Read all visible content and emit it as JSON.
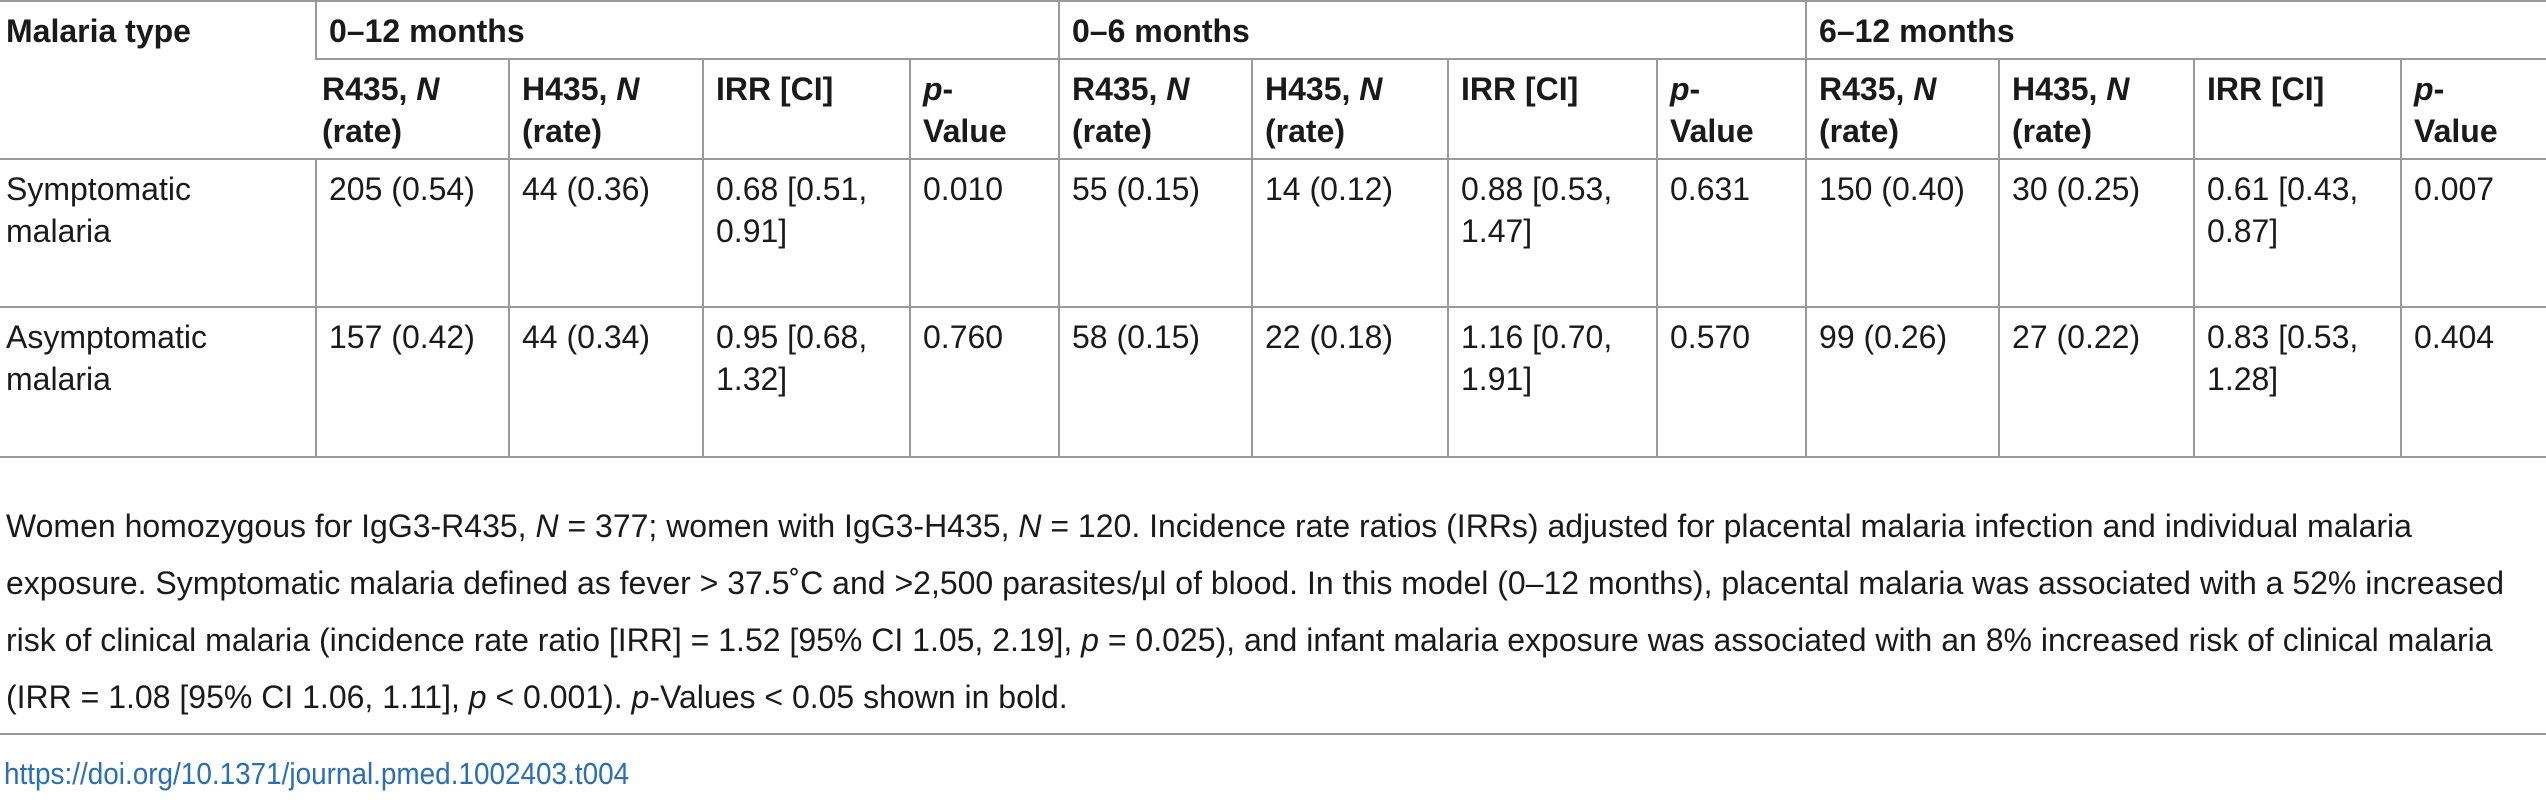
{
  "table": {
    "corner_header": "Malaria type",
    "groups": [
      "0–12 months",
      "0–6 months",
      "6–12 months"
    ],
    "subheaders": {
      "r435": [
        "R435, ",
        "N",
        "(rate)"
      ],
      "h435": [
        "H435, ",
        "N",
        "(rate)"
      ],
      "irr": "IRR [CI]",
      "pval": [
        "p",
        "-",
        "Value"
      ]
    },
    "rows": [
      {
        "label": "Symptomatic malaria",
        "cells": [
          "205 (0.54)",
          "44 (0.36)",
          "0.68 [0.51, 0.91]",
          "0.010",
          "55 (0.15)",
          "14 (0.12)",
          "0.88 [0.53, 1.47]",
          "0.631",
          "150 (0.40)",
          "30 (0.25)",
          "0.61 [0.43, 0.87]",
          "0.007"
        ],
        "bold": [
          false,
          false,
          false,
          true,
          false,
          false,
          false,
          false,
          false,
          false,
          false,
          true
        ]
      },
      {
        "label": "Asymptomatic malaria",
        "cells": [
          "157 (0.42)",
          "44 (0.34)",
          "0.95 [0.68, 1.32]",
          "0.760",
          "58 (0.15)",
          "22 (0.18)",
          "1.16 [0.70, 1.91]",
          "0.570",
          "99 (0.26)",
          "27 (0.22)",
          "0.83 [0.53, 1.28]",
          "0.404"
        ],
        "bold": [
          false,
          false,
          false,
          false,
          false,
          false,
          false,
          false,
          false,
          false,
          false,
          false
        ]
      }
    ]
  },
  "footnote": [
    {
      "t": "Women homozygous for IgG3-R435, "
    },
    {
      "t": "N",
      "i": true
    },
    {
      "t": " = 377; women with IgG3-H435, "
    },
    {
      "t": "N",
      "i": true
    },
    {
      "t": " = 120. Incidence rate ratios (IRRs) adjusted for placental malaria infection and individual malaria exposure. Symptomatic malaria defined as fever > 37.5˚C and >2,500 parasites/μl of blood. In this model (0–12 months), placental malaria was associated with a 52% increased risk of clinical malaria (incidence rate ratio [IRR] = 1.52 [95% CI 1.05, 2.19], "
    },
    {
      "t": "p",
      "i": true
    },
    {
      "t": " = 0.025), and infant malaria exposure was associated with an 8% increased risk of clinical malaria (IRR = 1.08 [95% CI 1.06, 1.11], "
    },
    {
      "t": "p",
      "i": true
    },
    {
      "t": " < 0.001). "
    },
    {
      "t": "p",
      "i": true
    },
    {
      "t": "-Values < 0.05 shown in bold."
    }
  ],
  "doi": "https://doi.org/10.1371/journal.pmed.1002403.t004"
}
